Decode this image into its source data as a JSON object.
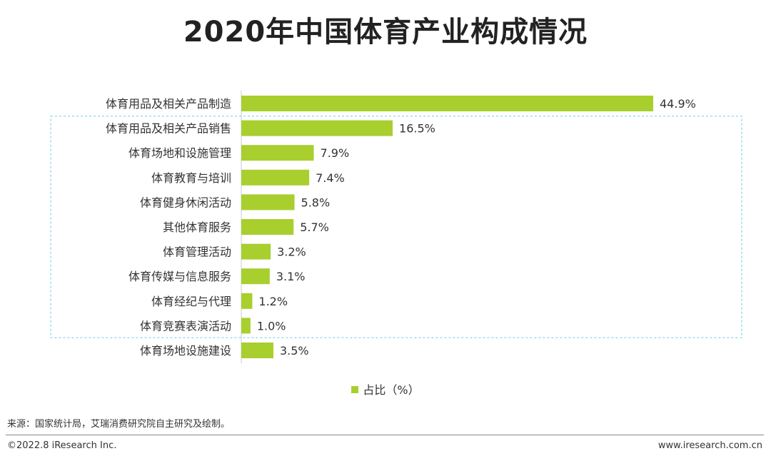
{
  "title": "2020年中国体育产业构成情况",
  "chart_data": {
    "type": "bar",
    "orientation": "horizontal",
    "categories": [
      "体育用品及相关产品制造",
      "体育用品及相关产品销售",
      "体育场地和设施管理",
      "体育教育与培训",
      "体育健身休闲活动",
      "其他体育服务",
      "体育管理活动",
      "体育传媒与信息服务",
      "体育经纪与代理",
      "体育竞赛表演活动",
      "体育场地设施建设"
    ],
    "series": [
      {
        "name": "占比（%）",
        "values": [
          44.9,
          16.5,
          7.9,
          7.4,
          5.8,
          5.7,
          3.2,
          3.1,
          1.2,
          1.0,
          3.5
        ],
        "labels": [
          "44.9%",
          "16.5%",
          "7.9%",
          "7.4%",
          "5.8%",
          "5.7%",
          "3.2%",
          "3.1%",
          "1.2%",
          "1.0%",
          "3.5%"
        ]
      }
    ],
    "xlim": [
      0,
      44.9
    ],
    "grid": false,
    "legend_position": "bottom",
    "highlight_box": "dashed frame around categories 2–10",
    "bar_color": "#a8cf2e"
  },
  "footer": {
    "source": "来源：国家统计局，艾瑞消费研究院自主研究及绘制。",
    "copyright": "©2022.8 iResearch Inc.",
    "website": "www.iresearch.com.cn"
  }
}
